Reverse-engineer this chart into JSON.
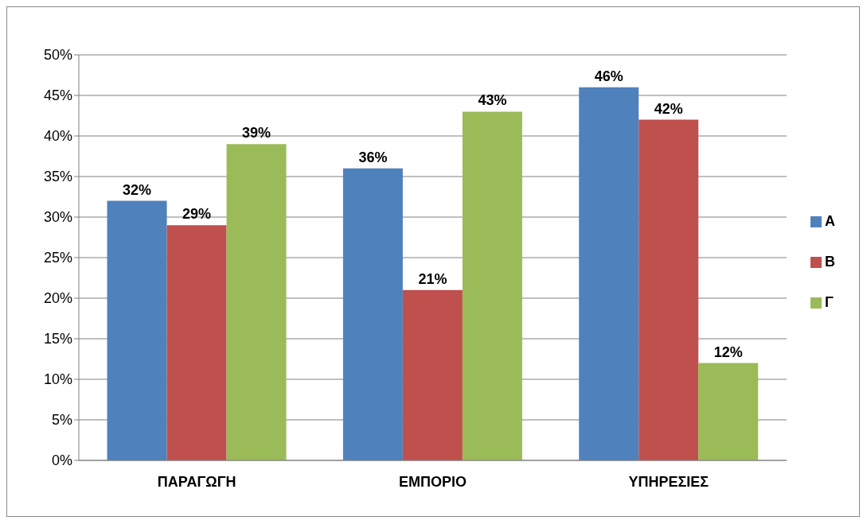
{
  "chart_data": {
    "type": "bar",
    "categories": [
      "ΠΑΡΑΓΩΓΗ",
      "ΕΜΠΟΡΙΟ",
      "ΥΠΗΡΕΣΙΕΣ"
    ],
    "series": [
      {
        "name": "Α",
        "color": "#4f81bd",
        "values": [
          32,
          36,
          46
        ],
        "value_labels": [
          "32%",
          "36%",
          "46%"
        ]
      },
      {
        "name": "Β",
        "color": "#c0504d",
        "values": [
          29,
          21,
          42
        ],
        "value_labels": [
          "29%",
          "21%",
          "42%"
        ]
      },
      {
        "name": "Γ",
        "color": "#9bbb59",
        "values": [
          39,
          43,
          12
        ],
        "value_labels": [
          "39%",
          "43%",
          "12%"
        ]
      }
    ],
    "ylim": [
      0,
      50
    ],
    "yticks": [
      {
        "value": 0,
        "label": "0%"
      },
      {
        "value": 5,
        "label": "5%"
      },
      {
        "value": 10,
        "label": "10%"
      },
      {
        "value": 15,
        "label": "15%"
      },
      {
        "value": 20,
        "label": "20%"
      },
      {
        "value": 25,
        "label": "25%"
      },
      {
        "value": 30,
        "label": "30%"
      },
      {
        "value": 35,
        "label": "35%"
      },
      {
        "value": 40,
        "label": "40%"
      },
      {
        "value": 45,
        "label": "45%"
      },
      {
        "value": 50,
        "label": "50%"
      }
    ],
    "grid": "y",
    "legend": "right"
  }
}
